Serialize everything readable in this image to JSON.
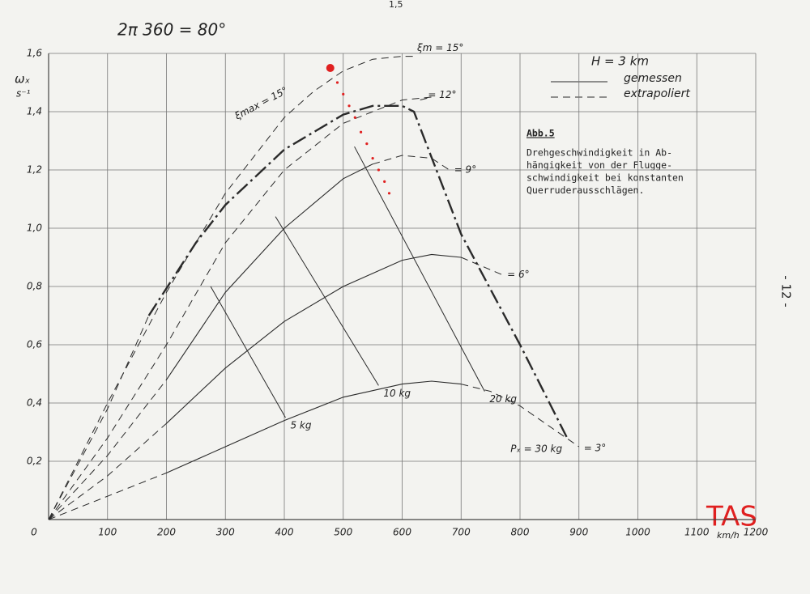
{
  "chart_data": {
    "type": "line",
    "header_note": "2π 360 = 80°",
    "page_mark": "1,5",
    "page_number": "- 12 -",
    "stamp": "TAS",
    "y_label": "ωₓ",
    "y_unit": "s⁻¹",
    "x_unit": "km/h",
    "box_title": "Abb.5",
    "box_lines": [
      "Drehgeschwindigkeit in Ab-",
      "hängigkeit von der Flugge-",
      "schwindigkeit bei konstanten",
      "Querruderausschlägen."
    ],
    "legend": {
      "title": "H = 3 km",
      "entries": [
        {
          "label": "gemessen",
          "style": "solid"
        },
        {
          "label": "extrapoliert",
          "style": "dashed"
        }
      ]
    },
    "xlim": [
      0,
      1200
    ],
    "ylim": [
      0,
      1.6
    ],
    "xticks": [
      0,
      100,
      200,
      300,
      400,
      500,
      600,
      700,
      800,
      900,
      1000,
      1100,
      1200
    ],
    "yticks": [
      {
        "value": 0.2,
        "label": "0,2"
      },
      {
        "value": 0.4,
        "label": "0,4"
      },
      {
        "value": 0.6,
        "label": "0,6"
      },
      {
        "value": 0.8,
        "label": "0,8"
      },
      {
        "value": 1.0,
        "label": "1,0"
      },
      {
        "value": 1.2,
        "label": "1,2"
      },
      {
        "value": 1.4,
        "label": "1,4"
      },
      {
        "value": 1.6,
        "label": "1,6"
      }
    ],
    "grid": true,
    "color": "#2a2a2a",
    "series": [
      {
        "style": "dashed",
        "x": [
          0,
          100,
          200
        ],
        "values": [
          0,
          0.08,
          0.16
        ]
      },
      {
        "style": "solid",
        "x": [
          200,
          300,
          400,
          500,
          600,
          650,
          700
        ],
        "values": [
          0.16,
          0.25,
          0.34,
          0.42,
          0.465,
          0.475,
          0.465
        ]
      },
      {
        "label": "= 3°",
        "style": "dashed",
        "x": [
          700,
          750,
          800,
          850,
          900
        ],
        "values": [
          0.465,
          0.44,
          0.39,
          0.32,
          0.25
        ]
      },
      {
        "style": "dashed",
        "x": [
          0,
          100,
          200
        ],
        "values": [
          0,
          0.15,
          0.33
        ]
      },
      {
        "style": "solid",
        "x": [
          200,
          300,
          400,
          500,
          600,
          650,
          700
        ],
        "values": [
          0.33,
          0.52,
          0.68,
          0.8,
          0.89,
          0.91,
          0.9
        ]
      },
      {
        "label": "= 6°",
        "style": "dashed",
        "x": [
          700,
          770
        ],
        "values": [
          0.9,
          0.84
        ]
      },
      {
        "style": "dashed",
        "x": [
          0,
          100,
          200
        ],
        "values": [
          0,
          0.22,
          0.48
        ]
      },
      {
        "style": "solid",
        "x": [
          200,
          300,
          400,
          500,
          550
        ],
        "values": [
          0.48,
          0.78,
          1.0,
          1.17,
          1.22
        ]
      },
      {
        "label": "= 9°",
        "style": "dashed",
        "x": [
          550,
          600,
          650,
          680
        ],
        "values": [
          1.22,
          1.25,
          1.24,
          1.2
        ]
      },
      {
        "label": "= 12°",
        "style": "dashed",
        "x": [
          0,
          100,
          200,
          300,
          400,
          500,
          600,
          650,
          630
        ],
        "values": [
          0,
          0.28,
          0.6,
          0.95,
          1.2,
          1.36,
          1.44,
          1.45,
          1.44
        ]
      },
      {
        "label": "ξm = 15°",
        "style": "dashed",
        "x": [
          0,
          100,
          200,
          300,
          400,
          450,
          500,
          550,
          600,
          620
        ],
        "values": [
          0,
          0.4,
          0.78,
          1.12,
          1.38,
          1.47,
          1.54,
          1.58,
          1.59,
          1.59
        ]
      },
      {
        "style": "dashed",
        "x": [
          0,
          100,
          170
        ],
        "values": [
          0,
          0.38,
          0.7
        ]
      },
      {
        "label": "ξmax = 15°",
        "style": "measured-max",
        "x": [
          170,
          250,
          300,
          400,
          500,
          550,
          600,
          620,
          700,
          800,
          880
        ],
        "values": [
          0.7,
          0.95,
          1.08,
          1.27,
          1.39,
          1.42,
          1.42,
          1.4,
          0.98,
          0.6,
          0.28
        ]
      }
    ],
    "force_lines": [
      {
        "label": "5 kg",
        "x": [
          275,
          402
        ],
        "values": [
          0.8,
          0.35
        ]
      },
      {
        "label": "10 kg",
        "x": [
          385,
          560
        ],
        "values": [
          1.04,
          0.46
        ]
      },
      {
        "label": "20 kg",
        "x": [
          519,
          740
        ],
        "values": [
          1.28,
          0.44
        ]
      },
      {
        "label": "Pₓ = 30 kg",
        "x": [
          880
        ],
        "values": [
          0.27
        ]
      }
    ],
    "red_annotation": {
      "x": [
        478,
        490,
        500,
        510,
        520,
        530,
        540,
        550,
        560,
        570,
        578
      ],
      "values": [
        1.55,
        1.5,
        1.46,
        1.42,
        1.38,
        1.33,
        1.29,
        1.24,
        1.2,
        1.16,
        1.12
      ]
    }
  }
}
